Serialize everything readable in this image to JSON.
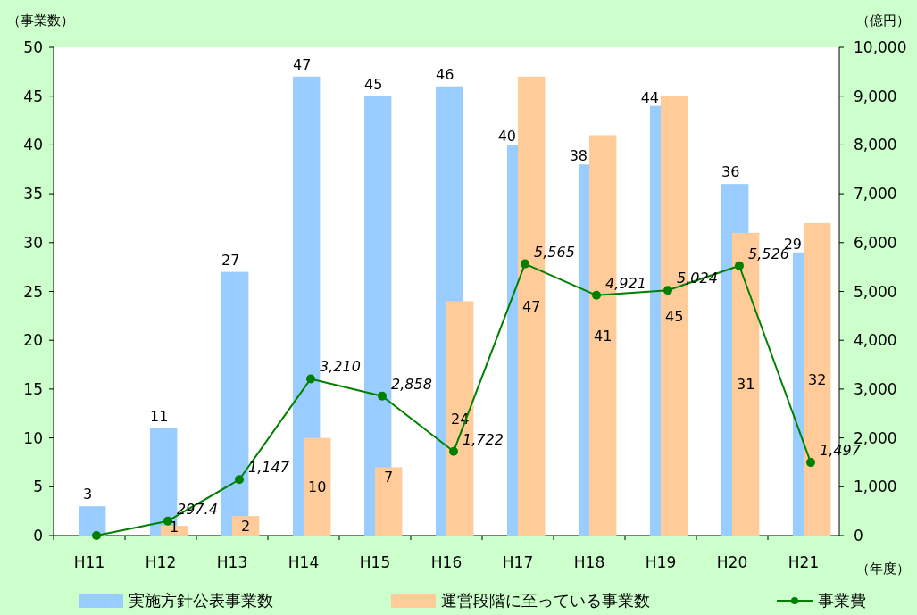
{
  "chart_data": {
    "type": "bar",
    "categories": [
      "H11",
      "H12",
      "H13",
      "H14",
      "H15",
      "H16",
      "H17",
      "H18",
      "H19",
      "H20",
      "H21"
    ],
    "xlabel": "（年度）",
    "ylabel": "（事業数）",
    "y2label": "（億円）",
    "ylim": [
      0,
      50
    ],
    "yticks": [
      0,
      5,
      10,
      15,
      20,
      25,
      30,
      35,
      40,
      45,
      50
    ],
    "y2lim": [
      0,
      10000
    ],
    "y2ticks": [
      {
        "value": 0,
        "label": "0"
      },
      {
        "value": 1000,
        "label": "1,000"
      },
      {
        "value": 2000,
        "label": "2,000"
      },
      {
        "value": 3000,
        "label": "3,000"
      },
      {
        "value": 4000,
        "label": "4,000"
      },
      {
        "value": 5000,
        "label": "5,000"
      },
      {
        "value": 6000,
        "label": "6,000"
      },
      {
        "value": 7000,
        "label": "7,000"
      },
      {
        "value": 8000,
        "label": "8,000"
      },
      {
        "value": 9000,
        "label": "9,000"
      },
      {
        "value": 10000,
        "label": "10,000"
      }
    ],
    "legend": "bottom",
    "grid": false,
    "marker": "circle",
    "series": [
      {
        "name": "実施方針公表事業数",
        "color": "#99ccff",
        "values": [
          3,
          11,
          27,
          47,
          45,
          46,
          40,
          38,
          44,
          36,
          29
        ],
        "value_labels": [
          "3",
          "11",
          "27",
          "47",
          "45",
          "46",
          "40",
          "38",
          "44",
          "36",
          "29"
        ]
      },
      {
        "name": "運営段階に至っている事業数",
        "color": "#ffcc99",
        "values": [
          null,
          1,
          2,
          10,
          7,
          24,
          47,
          41,
          45,
          31,
          32
        ],
        "value_labels": [
          null,
          "1",
          "2",
          "10",
          "7",
          "24",
          "47",
          "41",
          "45",
          "31",
          "32"
        ]
      },
      {
        "name": "事業費",
        "type": "line",
        "axis": "y2",
        "color": "#008000",
        "values": [
          0,
          297.4,
          1147,
          3210,
          2858,
          1722,
          5565,
          4921,
          5024,
          5526,
          1497
        ],
        "value_labels": [
          null,
          "297.4",
          "1,147",
          "3,210",
          "2,858",
          "1,722",
          "5,565",
          "4,921",
          "5,024",
          "5,526",
          "1,497"
        ]
      }
    ]
  }
}
